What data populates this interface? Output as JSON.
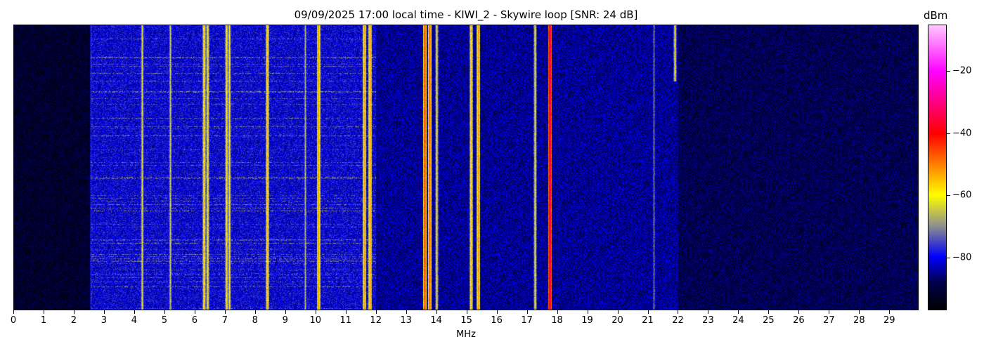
{
  "chart_data": {
    "type": "heatmap",
    "title": "09/09/2025 17:00 local time - KIWI_2 - Skywire loop [SNR: 24 dB]",
    "xlabel": "MHz",
    "ylabel": "",
    "xlim": [
      0,
      29.97
    ],
    "x_ticks": [
      "0",
      "1",
      "2",
      "3",
      "4",
      "5",
      "6",
      "7",
      "8",
      "9",
      "10",
      "11",
      "12",
      "13",
      "14",
      "15",
      "16",
      "17",
      "18",
      "19",
      "20",
      "21",
      "22",
      "23",
      "24",
      "25",
      "26",
      "27",
      "28",
      "29"
    ],
    "colorbar": {
      "label": "dBm",
      "clim": [
        -97,
        -5
      ],
      "ticks": [
        -20,
        -40,
        -60,
        -80
      ],
      "tick_labels": [
        "−20",
        "−40",
        "−60",
        "−80"
      ],
      "colormap": [
        {
          "v": -97,
          "color": "#000000"
        },
        {
          "v": -88,
          "color": "#000050"
        },
        {
          "v": -80,
          "color": "#0000ff"
        },
        {
          "v": -75,
          "color": "#4848c0"
        },
        {
          "v": -70,
          "color": "#909090"
        },
        {
          "v": -60,
          "color": "#ffff00"
        },
        {
          "v": -50,
          "color": "#ff8000"
        },
        {
          "v": -40,
          "color": "#ff0000"
        },
        {
          "v": -20,
          "color": "#ff00ff"
        },
        {
          "v": -5,
          "color": "#ffc8ff"
        }
      ]
    },
    "noise_floor": [
      {
        "from": 0,
        "to": 2.55,
        "dBm": -92
      },
      {
        "from": 2.55,
        "to": 12,
        "dBm": -81
      },
      {
        "from": 12,
        "to": 22,
        "dBm": -85
      },
      {
        "from": 22,
        "to": 29.97,
        "dBm": -89
      }
    ],
    "signals": [
      {
        "mhz": 2.55,
        "dBm": -76
      },
      {
        "mhz": 4.25,
        "dBm": -62
      },
      {
        "mhz": 5.2,
        "dBm": -64
      },
      {
        "mhz": 6.3,
        "dBm": -56
      },
      {
        "mhz": 6.42,
        "dBm": -58
      },
      {
        "mhz": 7.05,
        "dBm": -58
      },
      {
        "mhz": 7.15,
        "dBm": -60
      },
      {
        "mhz": 8.4,
        "dBm": -55
      },
      {
        "mhz": 9.65,
        "dBm": -66
      },
      {
        "mhz": 10.1,
        "dBm": -50
      },
      {
        "mhz": 11.6,
        "dBm": -52
      },
      {
        "mhz": 11.8,
        "dBm": -50
      },
      {
        "mhz": 13.62,
        "dBm": -43
      },
      {
        "mhz": 13.78,
        "dBm": -45
      },
      {
        "mhz": 14.0,
        "dBm": -60
      },
      {
        "mhz": 15.15,
        "dBm": -55
      },
      {
        "mhz": 15.38,
        "dBm": -50
      },
      {
        "mhz": 17.27,
        "dBm": -60
      },
      {
        "mhz": 17.75,
        "dBm": -32
      },
      {
        "mhz": 21.2,
        "dBm": -70
      },
      {
        "mhz": 21.9,
        "dBm": -60
      }
    ]
  }
}
